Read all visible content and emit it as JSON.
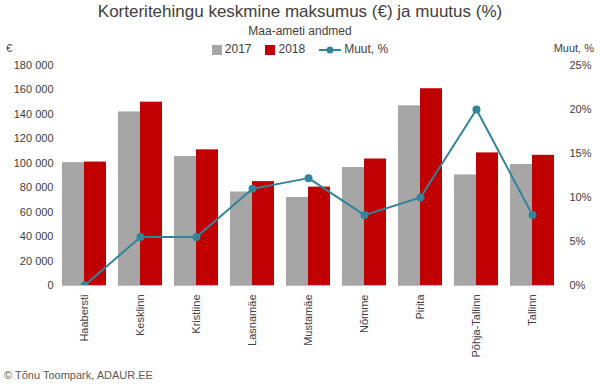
{
  "chart_data": {
    "type": "bar",
    "title": "Korteritehingu keskmine maksumus (€) ja muutus (%)",
    "subtitle": "Maa-ameti andmed",
    "ylabel": "€",
    "y2label": "Muut, %",
    "caption": "© Tõnu Toompark, ADAUR.EE",
    "categories": [
      "Haabersti",
      "Kesklinn",
      "Kristiine",
      "Lasnamäe",
      "Mustamäe",
      "Nõmme",
      "Pirita",
      "Põhja-Tallinn",
      "Tallinn"
    ],
    "series": [
      {
        "name": "2017",
        "color": "#a6a6a6",
        "values": [
          100500,
          142000,
          105500,
          76500,
          72000,
          96500,
          147000,
          90500,
          99000
        ]
      },
      {
        "name": "2018",
        "color": "#c00000",
        "values": [
          101000,
          150000,
          111000,
          85000,
          80500,
          103500,
          161000,
          108500,
          106500
        ]
      },
      {
        "name": "Muut, %",
        "type": "line",
        "axis": "y2",
        "color": "#31849b",
        "marker": "circle",
        "values": [
          0,
          5.5,
          5.5,
          11,
          12.2,
          8,
          10,
          20,
          8
        ]
      }
    ],
    "ylim": [
      0,
      180000
    ],
    "yticks": [
      0,
      {
        "value": 20000,
        "label": "20 000"
      },
      {
        "value": 40000,
        "label": "40 000"
      },
      {
        "value": 60000,
        "label": "60 000"
      },
      {
        "value": 80000,
        "label": "80 000"
      },
      {
        "value": 100000,
        "label": "100 000"
      },
      {
        "value": 120000,
        "label": "120 000"
      },
      {
        "value": 140000,
        "label": "140 000"
      },
      {
        "value": 160000,
        "label": "160 000"
      },
      {
        "value": 180000,
        "label": "180 000"
      }
    ],
    "y2lim": [
      0,
      25
    ],
    "y2ticks": [
      {
        "value": 0,
        "label": "0%"
      },
      {
        "value": 5,
        "label": "5%"
      },
      {
        "value": 10,
        "label": "10%"
      },
      {
        "value": 15,
        "label": "15%"
      },
      {
        "value": 20,
        "label": "20%"
      },
      {
        "value": 25,
        "label": "25%"
      }
    ],
    "legend": "top",
    "grid": false
  }
}
